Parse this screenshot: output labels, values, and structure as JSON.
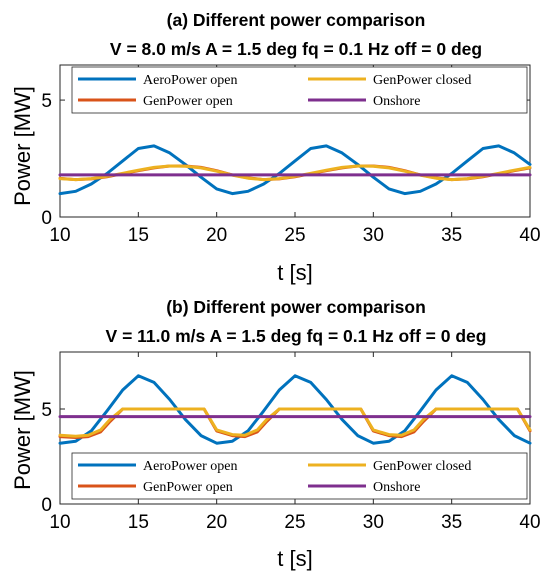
{
  "chart_data": [
    {
      "type": "line",
      "title": "(a)  Different power comparison",
      "subtitle": "V = 8.0 m/s A = 1.5 deg fq = 0.1 Hz off = 0 deg",
      "xlabel": "t [s]",
      "ylabel": "Power [MW]",
      "xlim": [
        10,
        40
      ],
      "ylim": [
        0,
        6.5
      ],
      "xticks": [
        10,
        15,
        20,
        25,
        30,
        35,
        40
      ],
      "yticks": [
        0,
        5
      ],
      "grid": false,
      "legend_position": "top",
      "series": [
        {
          "name": "AeroPower open",
          "color": "#0072BD",
          "x": [
            10,
            11,
            12,
            13,
            14,
            15,
            16,
            17,
            18,
            19,
            20,
            21,
            22,
            23,
            24,
            25,
            26,
            27,
            28,
            29,
            30,
            31,
            32,
            33,
            34,
            35,
            36,
            37,
            38,
            39,
            40
          ],
          "y": [
            1.0,
            1.1,
            1.41,
            1.86,
            2.4,
            2.93,
            3.04,
            2.74,
            2.25,
            1.7,
            1.2,
            1.0,
            1.1,
            1.41,
            1.86,
            2.4,
            2.93,
            3.04,
            2.74,
            2.25,
            1.7,
            1.2,
            1.0,
            1.1,
            1.41,
            1.86,
            2.4,
            2.93,
            3.04,
            2.74,
            2.25
          ]
        },
        {
          "name": "GenPower open",
          "color": "#D95319",
          "x": [
            10,
            11,
            12,
            13,
            14,
            15,
            16,
            17,
            18,
            19,
            20,
            21,
            22,
            23,
            24,
            25,
            26,
            27,
            28,
            29,
            30,
            31,
            32,
            33,
            34,
            35,
            36,
            37,
            38,
            39,
            40
          ],
          "y": [
            1.65,
            1.6,
            1.63,
            1.72,
            1.85,
            1.98,
            2.1,
            2.18,
            2.18,
            2.12,
            1.98,
            1.8,
            1.67,
            1.6,
            1.63,
            1.72,
            1.85,
            1.98,
            2.1,
            2.18,
            2.18,
            2.12,
            1.98,
            1.8,
            1.67,
            1.6,
            1.63,
            1.72,
            1.85,
            1.98,
            2.1
          ]
        },
        {
          "name": "GenPower closed",
          "color": "#EDB120",
          "x": [
            10,
            11,
            12,
            13,
            14,
            15,
            16,
            17,
            18,
            19,
            20,
            21,
            22,
            23,
            24,
            25,
            26,
            27,
            28,
            29,
            30,
            31,
            32,
            33,
            34,
            35,
            36,
            37,
            38,
            39,
            40
          ],
          "y": [
            1.64,
            1.6,
            1.64,
            1.74,
            1.87,
            2.0,
            2.12,
            2.18,
            2.17,
            2.1,
            1.96,
            1.79,
            1.66,
            1.6,
            1.64,
            1.74,
            1.87,
            2.0,
            2.12,
            2.18,
            2.17,
            2.1,
            1.96,
            1.79,
            1.66,
            1.6,
            1.64,
            1.74,
            1.87,
            2.0,
            2.12
          ]
        },
        {
          "name": "Onshore",
          "color": "#7E2F8E",
          "x": [
            10,
            40
          ],
          "y": [
            1.8,
            1.8
          ]
        }
      ]
    },
    {
      "type": "line",
      "title": "(b)  Different power comparison",
      "subtitle": "V = 11.0 m/s A = 1.5 deg fq = 0.1 Hz off = 0 deg",
      "xlabel": "t [s]",
      "ylabel": "Power [MW]",
      "xlim": [
        10,
        40
      ],
      "ylim": [
        0,
        8
      ],
      "xticks": [
        10,
        15,
        20,
        25,
        30,
        35,
        40
      ],
      "yticks": [
        0,
        5
      ],
      "grid": false,
      "legend_position": "bottom",
      "series": [
        {
          "name": "AeroPower open",
          "color": "#0072BD",
          "x": [
            10,
            11,
            12,
            13,
            14,
            15,
            16,
            17,
            18,
            19,
            20,
            21,
            22,
            23,
            24,
            25,
            26,
            27,
            28,
            29,
            30,
            31,
            32,
            33,
            34,
            35,
            36,
            37,
            38,
            39,
            40
          ],
          "y": [
            3.2,
            3.3,
            3.85,
            4.9,
            6.0,
            6.75,
            6.4,
            5.5,
            4.45,
            3.6,
            3.2,
            3.3,
            3.85,
            4.9,
            6.0,
            6.75,
            6.4,
            5.5,
            4.45,
            3.6,
            3.2,
            3.3,
            3.85,
            4.9,
            6.0,
            6.75,
            6.4,
            5.5,
            4.45,
            3.6,
            3.2
          ]
        },
        {
          "name": "GenPower open",
          "color": "#D95319",
          "x": [
            10,
            11,
            11.8,
            12.6,
            13.2,
            14,
            15,
            16,
            17,
            18,
            19.2,
            20,
            21,
            21.8,
            22.6,
            23.2,
            24,
            25,
            26,
            27,
            28,
            29.2,
            30,
            31,
            31.8,
            32.6,
            33.2,
            34,
            35,
            36,
            37,
            38,
            39.2,
            40
          ],
          "y": [
            3.55,
            3.5,
            3.55,
            3.8,
            4.35,
            5.0,
            5.0,
            5.0,
            5.0,
            5.0,
            5.0,
            3.85,
            3.6,
            3.55,
            3.8,
            4.35,
            5.0,
            5.0,
            5.0,
            5.0,
            5.0,
            5.0,
            3.85,
            3.6,
            3.55,
            3.8,
            4.35,
            5.0,
            5.0,
            5.0,
            5.0,
            5.0,
            5.0,
            3.85
          ]
        },
        {
          "name": "GenPower closed",
          "color": "#EDB120",
          "x": [
            10,
            11,
            11.8,
            12.6,
            13.2,
            14,
            15,
            16,
            17,
            18,
            19.2,
            20,
            21,
            21.8,
            22.6,
            23.2,
            24,
            25,
            26,
            27,
            28,
            29.2,
            30,
            31,
            31.8,
            32.6,
            33.2,
            34,
            35,
            36,
            37,
            38,
            39.2,
            40
          ],
          "y": [
            3.62,
            3.57,
            3.62,
            3.9,
            4.45,
            5.0,
            5.0,
            5.0,
            5.0,
            5.0,
            5.0,
            3.9,
            3.65,
            3.62,
            3.9,
            4.45,
            5.0,
            5.0,
            5.0,
            5.0,
            5.0,
            5.0,
            3.9,
            3.65,
            3.62,
            3.9,
            4.45,
            5.0,
            5.0,
            5.0,
            5.0,
            5.0,
            5.0,
            3.9
          ]
        },
        {
          "name": "Onshore",
          "color": "#7E2F8E",
          "x": [
            10,
            40
          ],
          "y": [
            4.6,
            4.6
          ]
        }
      ]
    }
  ]
}
